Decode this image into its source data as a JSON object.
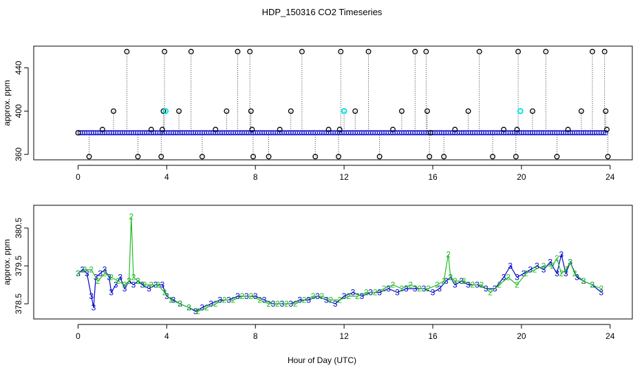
{
  "title": "HDP_150316  CO2 Timeseries",
  "xlabel": "Hour of Day (UTC)",
  "colors": {
    "flagged": "#000000",
    "highlight": "#00e5e5",
    "series_blue": "#0000cc",
    "series_green": "#22bb22",
    "axis": "#000000"
  },
  "chart_data": [
    {
      "type": "scatter",
      "ylabel": "approx. ppm",
      "xlim": [
        -2,
        25
      ],
      "ylim": [
        355,
        460
      ],
      "xticks": [
        0,
        4,
        8,
        12,
        16,
        20,
        24
      ],
      "yticks": [
        360,
        400,
        440
      ],
      "xtick_labels": [
        "0",
        "4",
        "8",
        "12",
        "16",
        "20",
        "24"
      ],
      "ytick_labels": [
        "360",
        "400",
        "440"
      ],
      "baseline": 380,
      "series": [
        {
          "marker": "open-circle",
          "color": "#0000cc",
          "x_range": [
            0,
            23.8
          ],
          "y": 380
        }
      ],
      "spikes": [
        {
          "x": 0.0,
          "y": 380
        },
        {
          "x": 0.5,
          "y": 358
        },
        {
          "x": 1.1,
          "y": 383
        },
        {
          "x": 1.6,
          "y": 400
        },
        {
          "x": 2.2,
          "y": 455
        },
        {
          "x": 2.7,
          "y": 358
        },
        {
          "x": 3.3,
          "y": 383
        },
        {
          "x": 3.75,
          "y": 358
        },
        {
          "x": 3.8,
          "y": 383
        },
        {
          "x": 3.85,
          "y": 400
        },
        {
          "x": 3.9,
          "y": 455
        },
        {
          "x": 4.55,
          "y": 400
        },
        {
          "x": 5.1,
          "y": 455
        },
        {
          "x": 5.6,
          "y": 358
        },
        {
          "x": 6.2,
          "y": 383
        },
        {
          "x": 6.7,
          "y": 400
        },
        {
          "x": 7.2,
          "y": 455
        },
        {
          "x": 7.75,
          "y": 455
        },
        {
          "x": 7.8,
          "y": 400
        },
        {
          "x": 7.85,
          "y": 383
        },
        {
          "x": 7.9,
          "y": 358
        },
        {
          "x": 8.6,
          "y": 358
        },
        {
          "x": 9.1,
          "y": 383
        },
        {
          "x": 9.6,
          "y": 400
        },
        {
          "x": 10.1,
          "y": 455
        },
        {
          "x": 10.7,
          "y": 358
        },
        {
          "x": 11.3,
          "y": 383
        },
        {
          "x": 11.75,
          "y": 358
        },
        {
          "x": 11.8,
          "y": 383
        },
        {
          "x": 11.85,
          "y": 455
        },
        {
          "x": 12.0,
          "y": 400
        },
        {
          "x": 12.5,
          "y": 400
        },
        {
          "x": 13.1,
          "y": 455
        },
        {
          "x": 13.6,
          "y": 358
        },
        {
          "x": 14.2,
          "y": 383
        },
        {
          "x": 14.6,
          "y": 400
        },
        {
          "x": 15.2,
          "y": 455
        },
        {
          "x": 15.7,
          "y": 455
        },
        {
          "x": 15.75,
          "y": 400
        },
        {
          "x": 15.85,
          "y": 358
        },
        {
          "x": 15.9,
          "y": 380
        },
        {
          "x": 16.5,
          "y": 358
        },
        {
          "x": 17.0,
          "y": 383
        },
        {
          "x": 17.6,
          "y": 400
        },
        {
          "x": 18.1,
          "y": 455
        },
        {
          "x": 18.7,
          "y": 358
        },
        {
          "x": 19.2,
          "y": 383
        },
        {
          "x": 19.75,
          "y": 358
        },
        {
          "x": 19.8,
          "y": 383
        },
        {
          "x": 19.85,
          "y": 455
        },
        {
          "x": 20.5,
          "y": 400
        },
        {
          "x": 21.1,
          "y": 455
        },
        {
          "x": 21.6,
          "y": 358
        },
        {
          "x": 22.1,
          "y": 383
        },
        {
          "x": 22.7,
          "y": 400
        },
        {
          "x": 23.2,
          "y": 455
        },
        {
          "x": 23.75,
          "y": 455
        },
        {
          "x": 23.8,
          "y": 400
        },
        {
          "x": 23.85,
          "y": 383
        },
        {
          "x": 23.9,
          "y": 358
        }
      ],
      "highlights": [
        {
          "x": 3.95,
          "y": 400
        },
        {
          "x": 12.0,
          "y": 400
        },
        {
          "x": 19.95,
          "y": 400
        }
      ]
    },
    {
      "type": "line",
      "ylabel": "approx. ppm",
      "xlim": [
        -2,
        25
      ],
      "ylim": [
        378.1,
        381.1
      ],
      "xticks": [
        0,
        4,
        8,
        12,
        16,
        20,
        24
      ],
      "yticks": [
        378.5,
        379.5,
        380.5
      ],
      "xtick_labels": [
        "0",
        "4",
        "8",
        "12",
        "16",
        "20",
        "24"
      ],
      "ytick_labels": [
        "378.5",
        "379.5",
        "380.5"
      ],
      "series": [
        {
          "marker": "3",
          "color": "#0000cc",
          "x": [
            0,
            0.2,
            0.4,
            0.6,
            0.7,
            0.8,
            1.0,
            1.2,
            1.4,
            1.5,
            1.7,
            1.9,
            2.1,
            2.3,
            2.5,
            2.7,
            2.9,
            3.2,
            3.5,
            3.8,
            4.0,
            4.3,
            4.6,
            5.0,
            5.3,
            5.6,
            6.0,
            6.4,
            6.8,
            7.2,
            7.6,
            8.0,
            8.4,
            8.8,
            9.2,
            9.6,
            10.0,
            10.4,
            10.8,
            11.2,
            11.6,
            12.0,
            12.4,
            12.8,
            13.2,
            13.6,
            14.0,
            14.4,
            14.8,
            15.2,
            15.6,
            16.0,
            16.3,
            16.6,
            16.8,
            17.0,
            17.3,
            17.6,
            18.0,
            18.4,
            18.8,
            19.2,
            19.5,
            19.8,
            20.1,
            20.4,
            20.7,
            21.0,
            21.3,
            21.6,
            21.8,
            22.0,
            22.2,
            22.5,
            22.8,
            23.2,
            23.6
          ],
          "y": [
            379.3,
            379.4,
            379.3,
            378.7,
            378.4,
            379.2,
            379.3,
            379.4,
            379.2,
            378.8,
            379.0,
            379.2,
            378.9,
            379.1,
            379.0,
            379.1,
            379.0,
            378.9,
            379.0,
            379.0,
            378.7,
            378.6,
            378.5,
            378.4,
            378.3,
            378.4,
            378.5,
            378.6,
            378.6,
            378.7,
            378.7,
            378.7,
            378.6,
            378.5,
            378.5,
            378.5,
            378.6,
            378.6,
            378.7,
            378.6,
            378.5,
            378.7,
            378.8,
            378.7,
            378.8,
            378.8,
            378.9,
            378.8,
            378.9,
            378.9,
            378.9,
            378.8,
            378.9,
            379.1,
            379.2,
            379.0,
            379.1,
            379.0,
            379.0,
            378.9,
            378.9,
            379.2,
            379.5,
            379.2,
            379.3,
            379.4,
            379.5,
            379.4,
            379.6,
            379.3,
            379.8,
            379.3,
            379.6,
            379.2,
            379.1,
            379.0,
            378.8
          ]
        },
        {
          "marker": "2",
          "color": "#22bb22",
          "x": [
            0,
            0.3,
            0.6,
            0.9,
            1.2,
            1.5,
            1.8,
            2.1,
            2.3,
            2.4,
            2.5,
            2.7,
            3.0,
            3.3,
            3.6,
            3.9,
            4.2,
            4.6,
            5.0,
            5.4,
            5.8,
            6.2,
            6.6,
            7.0,
            7.4,
            7.8,
            8.2,
            8.6,
            9.0,
            9.4,
            9.8,
            10.2,
            10.6,
            11.0,
            11.4,
            11.8,
            12.2,
            12.6,
            13.0,
            13.4,
            13.8,
            14.2,
            14.6,
            15.0,
            15.4,
            15.8,
            16.2,
            16.5,
            16.7,
            16.8,
            17.0,
            17.4,
            17.8,
            18.2,
            18.6,
            19.0,
            19.4,
            19.8,
            20.2,
            20.6,
            21.0,
            21.4,
            21.6,
            21.8,
            22.0,
            22.2,
            22.4,
            22.8,
            23.2,
            23.6
          ],
          "y": [
            379.3,
            379.4,
            379.4,
            379.1,
            379.3,
            379.2,
            379.1,
            379.0,
            379.1,
            380.8,
            379.2,
            379.1,
            379.0,
            379.0,
            379.0,
            378.8,
            378.6,
            378.5,
            378.4,
            378.3,
            378.4,
            378.5,
            378.6,
            378.6,
            378.7,
            378.7,
            378.6,
            378.5,
            378.5,
            378.5,
            378.5,
            378.6,
            378.7,
            378.7,
            378.6,
            378.6,
            378.7,
            378.7,
            378.8,
            378.8,
            378.9,
            379.0,
            378.9,
            379.0,
            378.9,
            378.9,
            379.0,
            379.1,
            379.8,
            379.2,
            379.1,
            379.1,
            379.0,
            379.0,
            378.8,
            379.0,
            379.2,
            379.0,
            379.3,
            379.4,
            379.5,
            379.5,
            379.7,
            379.3,
            379.4,
            379.6,
            379.3,
            379.1,
            379.0,
            378.9
          ]
        }
      ]
    }
  ]
}
